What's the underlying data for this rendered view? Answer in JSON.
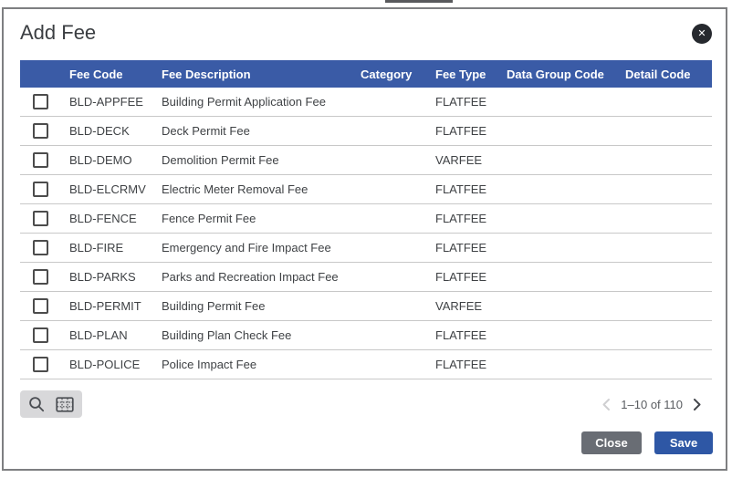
{
  "modal": {
    "title": "Add Fee",
    "close_icon_glyph": "✕"
  },
  "table": {
    "columns": [
      "Fee Code",
      "Fee Description",
      "Category",
      "Fee Type",
      "Data Group Code",
      "Detail Code"
    ],
    "rows": [
      {
        "fee_code": "BLD-APPFEE",
        "fee_description": "Building Permit Application Fee",
        "category": "",
        "fee_type": "FLATFEE",
        "data_group_code": "",
        "detail_code": ""
      },
      {
        "fee_code": "BLD-DECK",
        "fee_description": "Deck Permit Fee",
        "category": "",
        "fee_type": "FLATFEE",
        "data_group_code": "",
        "detail_code": ""
      },
      {
        "fee_code": "BLD-DEMO",
        "fee_description": "Demolition Permit Fee",
        "category": "",
        "fee_type": "VARFEE",
        "data_group_code": "",
        "detail_code": ""
      },
      {
        "fee_code": "BLD-ELCRMV",
        "fee_description": "Electric Meter Removal Fee",
        "category": "",
        "fee_type": "FLATFEE",
        "data_group_code": "",
        "detail_code": ""
      },
      {
        "fee_code": "BLD-FENCE",
        "fee_description": "Fence Permit Fee",
        "category": "",
        "fee_type": "FLATFEE",
        "data_group_code": "",
        "detail_code": ""
      },
      {
        "fee_code": "BLD-FIRE",
        "fee_description": "Emergency and Fire Impact Fee",
        "category": "",
        "fee_type": "FLATFEE",
        "data_group_code": "",
        "detail_code": ""
      },
      {
        "fee_code": "BLD-PARKS",
        "fee_description": "Parks and Recreation Impact Fee",
        "category": "",
        "fee_type": "FLATFEE",
        "data_group_code": "",
        "detail_code": ""
      },
      {
        "fee_code": "BLD-PERMIT",
        "fee_description": "Building Permit Fee",
        "category": "",
        "fee_type": "VARFEE",
        "data_group_code": "",
        "detail_code": ""
      },
      {
        "fee_code": "BLD-PLAN",
        "fee_description": "Building Plan Check Fee",
        "category": "",
        "fee_type": "FLATFEE",
        "data_group_code": "",
        "detail_code": ""
      },
      {
        "fee_code": "BLD-POLICE",
        "fee_description": "Police Impact Fee",
        "category": "",
        "fee_type": "FLATFEE",
        "data_group_code": "",
        "detail_code": ""
      }
    ]
  },
  "toolbar": {
    "icons": [
      "search-icon",
      "grid-icon"
    ]
  },
  "pagination": {
    "range_label": "1–10 of 110",
    "prev_enabled": false,
    "next_enabled": true
  },
  "footer_buttons": {
    "close_label": "Close",
    "save_label": "Save"
  },
  "colors": {
    "header_bg": "#3a5ba6",
    "save_bg": "#2e57a5",
    "close_bg": "#696d74",
    "close_icon_bg": "#26292e",
    "row_border": "#c8c8c8"
  }
}
